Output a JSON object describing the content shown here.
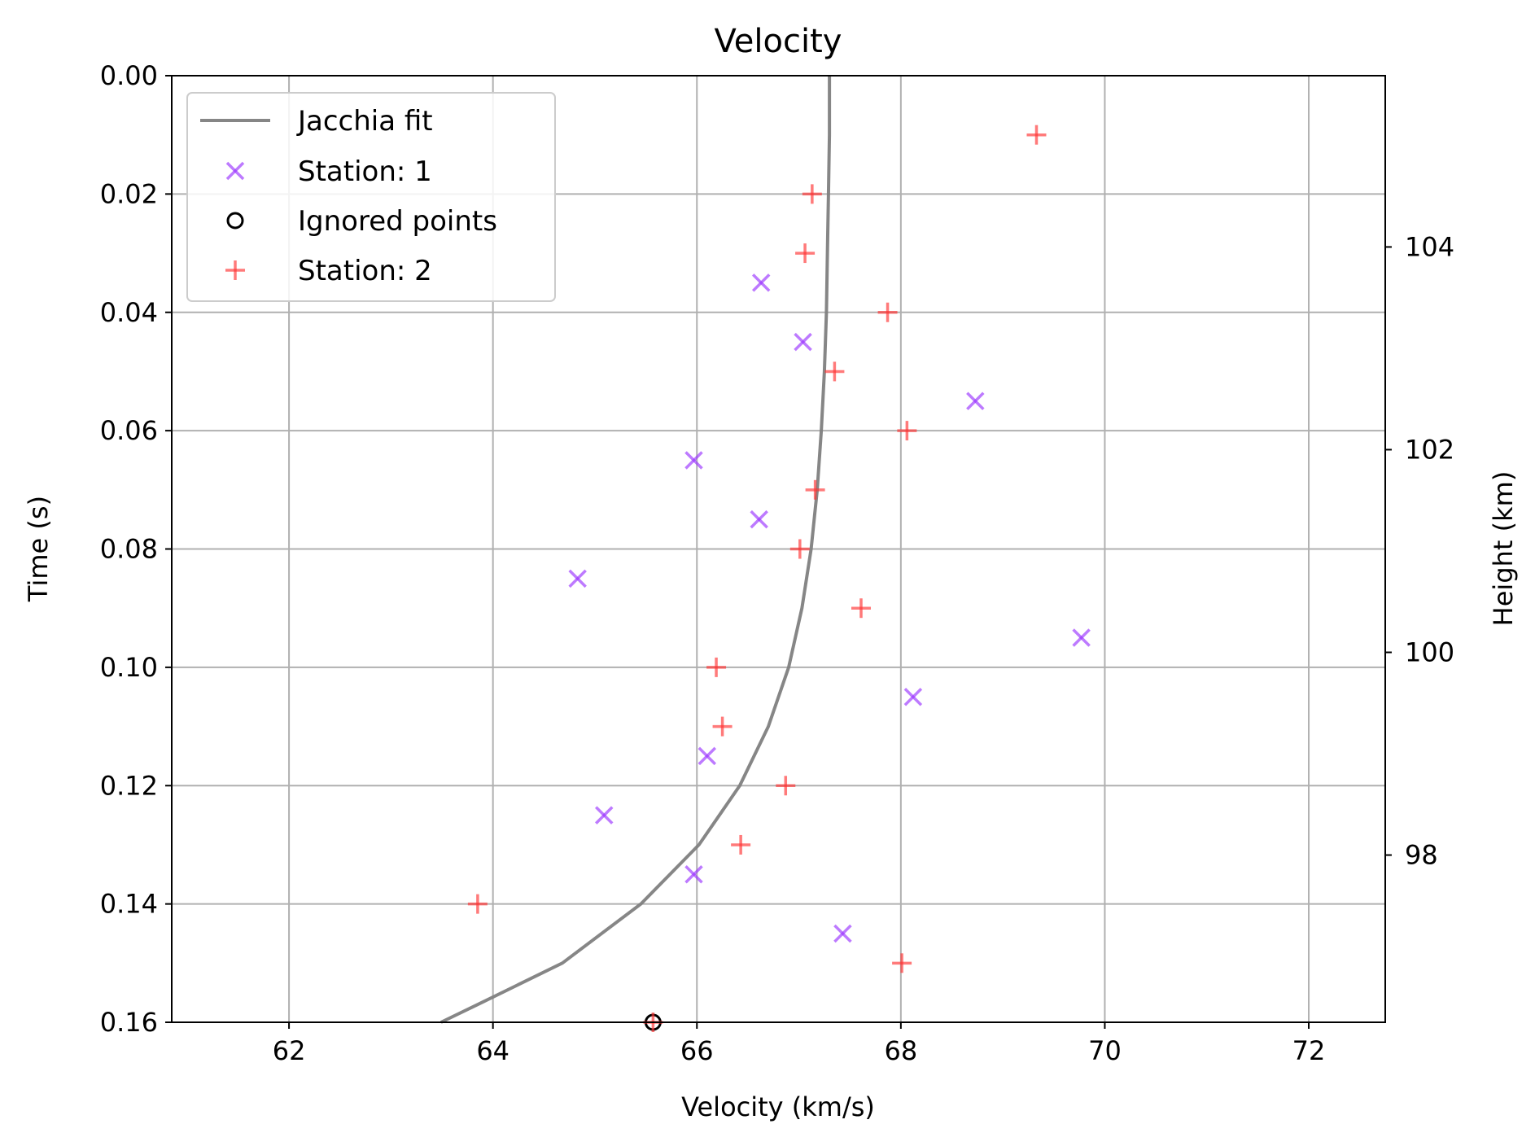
{
  "chart_data": {
    "type": "scatter",
    "title": "Velocity",
    "xlabel": "Velocity (km/s)",
    "ylabel": "Time (s)",
    "y2label": "Height (km)",
    "xlim": [
      60.85,
      72.75
    ],
    "ylim": [
      0.16,
      0.0
    ],
    "y2lim": [
      96.35,
      105.69
    ],
    "y_inverted": true,
    "grid": true,
    "legend_position": "top-left",
    "x_ticks": [
      {
        "value": 62,
        "label": "62"
      },
      {
        "value": 64,
        "label": "64"
      },
      {
        "value": 66,
        "label": "66"
      },
      {
        "value": 68,
        "label": "68"
      },
      {
        "value": 70,
        "label": "70"
      },
      {
        "value": 72,
        "label": "72"
      }
    ],
    "y_ticks": [
      {
        "value": 0.0,
        "label": "0.00"
      },
      {
        "value": 0.02,
        "label": "0.02"
      },
      {
        "value": 0.04,
        "label": "0.04"
      },
      {
        "value": 0.06,
        "label": "0.06"
      },
      {
        "value": 0.08,
        "label": "0.08"
      },
      {
        "value": 0.1,
        "label": "0.10"
      },
      {
        "value": 0.12,
        "label": "0.12"
      },
      {
        "value": 0.14,
        "label": "0.14"
      },
      {
        "value": 0.16,
        "label": "0.16"
      }
    ],
    "y2_ticks": [
      {
        "value": 98,
        "label": "98"
      },
      {
        "value": 100,
        "label": "100"
      },
      {
        "value": 102,
        "label": "102"
      },
      {
        "value": 104,
        "label": "104"
      }
    ],
    "series": [
      {
        "name": "Jacchia fit",
        "kind": "line",
        "color": "#808080",
        "points": [
          [
            67.3,
            0.0
          ],
          [
            67.3,
            0.01
          ],
          [
            67.29,
            0.02
          ],
          [
            67.28,
            0.03
          ],
          [
            67.27,
            0.04
          ],
          [
            67.25,
            0.05
          ],
          [
            67.22,
            0.06
          ],
          [
            67.18,
            0.07
          ],
          [
            67.12,
            0.08
          ],
          [
            67.03,
            0.09
          ],
          [
            66.9,
            0.1
          ],
          [
            66.7,
            0.11
          ],
          [
            66.42,
            0.12
          ],
          [
            66.02,
            0.13
          ],
          [
            65.45,
            0.14
          ],
          [
            64.68,
            0.15
          ],
          [
            63.85,
            0.157
          ],
          [
            63.49,
            0.16
          ]
        ]
      },
      {
        "name": "Station: 1",
        "kind": "scatter",
        "marker": "x",
        "color": "#9933ff",
        "points": [
          [
            66.63,
            0.035
          ],
          [
            67.04,
            0.045
          ],
          [
            68.73,
            0.055
          ],
          [
            65.97,
            0.065
          ],
          [
            66.61,
            0.075
          ],
          [
            64.83,
            0.085
          ],
          [
            69.77,
            0.095
          ],
          [
            68.12,
            0.105
          ],
          [
            66.1,
            0.115
          ],
          [
            65.09,
            0.125
          ],
          [
            65.97,
            0.135
          ],
          [
            67.43,
            0.145
          ]
        ]
      },
      {
        "name": "Ignored points",
        "kind": "scatter",
        "marker": "o",
        "color": "#000000",
        "points": [
          [
            65.57,
            0.16
          ]
        ]
      },
      {
        "name": "Station: 2",
        "kind": "scatter",
        "marker": "+",
        "color": "#ff3333",
        "points": [
          [
            69.33,
            0.01
          ],
          [
            67.13,
            0.02
          ],
          [
            67.06,
            0.03
          ],
          [
            67.87,
            0.04
          ],
          [
            67.35,
            0.05
          ],
          [
            68.06,
            0.06
          ],
          [
            67.16,
            0.07
          ],
          [
            67.01,
            0.08
          ],
          [
            67.61,
            0.09
          ],
          [
            66.19,
            0.1
          ],
          [
            66.25,
            0.11
          ],
          [
            66.87,
            0.12
          ],
          [
            66.43,
            0.13
          ],
          [
            63.85,
            0.14
          ],
          [
            68.01,
            0.15
          ],
          [
            65.57,
            0.16
          ]
        ]
      }
    ]
  }
}
